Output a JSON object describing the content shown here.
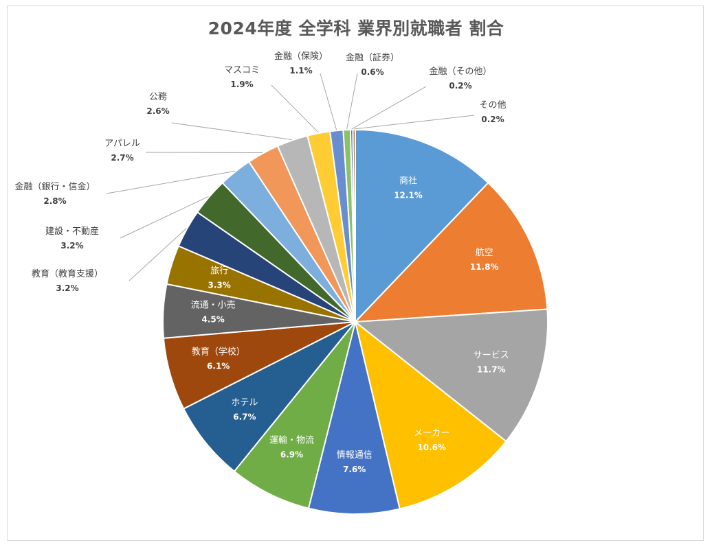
{
  "chart_data": {
    "type": "pie",
    "title": "2024年度 全学科 業界別就職者 割合",
    "legend": "none",
    "slices": [
      {
        "label": "商社",
        "value": 12.1,
        "value_text": "12.1%",
        "color": "#5B9BD5",
        "inside": true
      },
      {
        "label": "航空",
        "value": 11.8,
        "value_text": "11.8%",
        "color": "#ED7D31",
        "inside": true
      },
      {
        "label": "サービス",
        "value": 11.7,
        "value_text": "11.7%",
        "color": "#A5A5A5",
        "inside": true
      },
      {
        "label": "メーカー",
        "value": 10.6,
        "value_text": "10.6%",
        "color": "#FFC000",
        "inside": true
      },
      {
        "label": "情報通信",
        "value": 7.6,
        "value_text": "7.6%",
        "color": "#4472C4",
        "inside": true
      },
      {
        "label": "運輸・物流",
        "value": 6.9,
        "value_text": "6.9%",
        "color": "#70AD47",
        "inside": true
      },
      {
        "label": "ホテル",
        "value": 6.7,
        "value_text": "6.7%",
        "color": "#255E91",
        "inside": true
      },
      {
        "label": "教育（学校）",
        "value": 6.1,
        "value_text": "6.1%",
        "color": "#9E480E",
        "inside": true
      },
      {
        "label": "流通・小売",
        "value": 4.5,
        "value_text": "4.5%",
        "color": "#636363",
        "inside": true
      },
      {
        "label": "旅行",
        "value": 3.3,
        "value_text": "3.3%",
        "color": "#997300",
        "inside": true
      },
      {
        "label": "教育（教育支援）",
        "value": 3.2,
        "value_text": "3.2%",
        "color": "#264478",
        "inside": false
      },
      {
        "label": "建設・不動産",
        "value": 3.2,
        "value_text": "3.2%",
        "color": "#43682B",
        "inside": false
      },
      {
        "label": "金融（銀行・信金）",
        "value": 2.8,
        "value_text": "2.8%",
        "color": "#7CAFDD",
        "inside": false
      },
      {
        "label": "アパレル",
        "value": 2.7,
        "value_text": "2.7%",
        "color": "#F1975A",
        "inside": false
      },
      {
        "label": "公務",
        "value": 2.6,
        "value_text": "2.6%",
        "color": "#B7B7B7",
        "inside": false
      },
      {
        "label": "マスコミ",
        "value": 1.9,
        "value_text": "1.9%",
        "color": "#FFCD33",
        "inside": false
      },
      {
        "label": "金融（保険）",
        "value": 1.1,
        "value_text": "1.1%",
        "color": "#698ED0",
        "inside": false
      },
      {
        "label": "金融（証券）",
        "value": 0.6,
        "value_text": "0.6%",
        "color": "#8CC168",
        "inside": false
      },
      {
        "label": "金融（その他）",
        "value": 0.2,
        "value_text": "0.2%",
        "color": "#3E7AB5",
        "inside": false
      },
      {
        "label": "その他",
        "value": 0.2,
        "value_text": "0.2%",
        "color": "#D96B2B",
        "inside": false
      }
    ]
  }
}
